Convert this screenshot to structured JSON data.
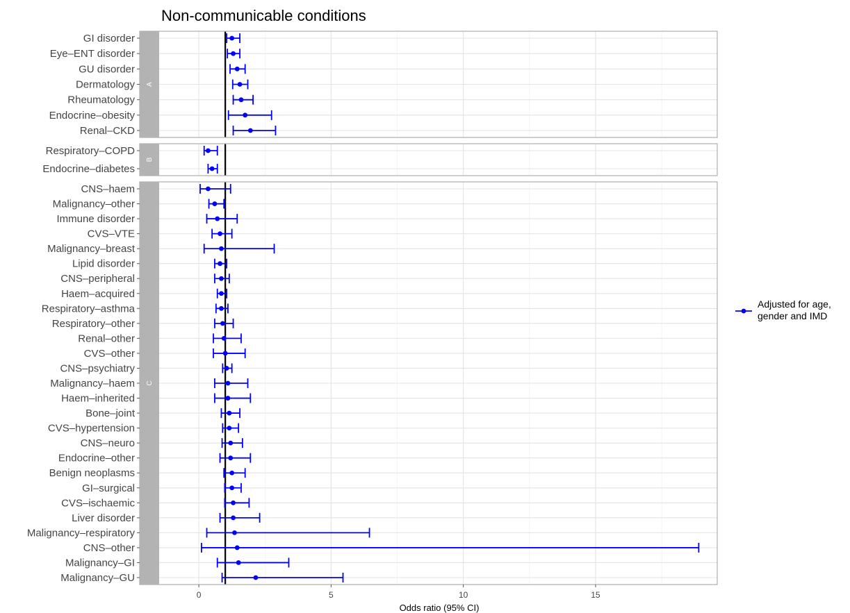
{
  "chart_data": {
    "type": "forest",
    "title": "Non-communicable conditions",
    "xlabel": "Odds ratio (95% CI)",
    "xlim": [
      -1.5,
      19.6
    ],
    "xticks": [
      0,
      5,
      10,
      15
    ],
    "reference_line": 1,
    "grid": true,
    "color": "#0000ff",
    "legend": {
      "position": "right",
      "lines": [
        "Adjusted for age,",
        "gender and IMD"
      ]
    },
    "panels": [
      {
        "label": "A",
        "rows": [
          {
            "name": "GI disorder",
            "or": 1.25,
            "lo": 1.05,
            "hi": 1.55
          },
          {
            "name": "Eye–ENT disorder",
            "or": 1.3,
            "lo": 1.08,
            "hi": 1.55
          },
          {
            "name": "GU disorder",
            "or": 1.45,
            "lo": 1.18,
            "hi": 1.75
          },
          {
            "name": "Dermatology",
            "or": 1.55,
            "lo": 1.28,
            "hi": 1.85
          },
          {
            "name": "Rheumatology",
            "or": 1.6,
            "lo": 1.3,
            "hi": 2.05
          },
          {
            "name": "Endocrine–obesity",
            "or": 1.75,
            "lo": 1.12,
            "hi": 2.75
          },
          {
            "name": "Renal–CKD",
            "or": 1.95,
            "lo": 1.3,
            "hi": 2.9
          }
        ]
      },
      {
        "label": "B",
        "rows": [
          {
            "name": "Respiratory–COPD",
            "or": 0.35,
            "lo": 0.2,
            "hi": 0.7
          },
          {
            "name": "Endocrine–diabetes",
            "or": 0.5,
            "lo": 0.35,
            "hi": 0.7
          }
        ]
      },
      {
        "label": "C",
        "rows": [
          {
            "name": "CNS–haem",
            "or": 0.35,
            "lo": 0.05,
            "hi": 1.2
          },
          {
            "name": "Malignancy–other",
            "or": 0.6,
            "lo": 0.38,
            "hi": 0.95
          },
          {
            "name": "Immune disorder",
            "or": 0.7,
            "lo": 0.3,
            "hi": 1.45
          },
          {
            "name": "CVS–VTE",
            "or": 0.8,
            "lo": 0.5,
            "hi": 1.25
          },
          {
            "name": "Malignancy–breast",
            "or": 0.85,
            "lo": 0.2,
            "hi": 2.85
          },
          {
            "name": "Lipid disorder",
            "or": 0.8,
            "lo": 0.6,
            "hi": 1.05
          },
          {
            "name": "CNS–peripheral",
            "or": 0.85,
            "lo": 0.6,
            "hi": 1.15
          },
          {
            "name": "Haem–acquired",
            "or": 0.85,
            "lo": 0.7,
            "hi": 1.05
          },
          {
            "name": "Respiratory–asthma",
            "or": 0.85,
            "lo": 0.65,
            "hi": 1.1
          },
          {
            "name": "Respiratory–other",
            "or": 0.9,
            "lo": 0.6,
            "hi": 1.3
          },
          {
            "name": "Renal–other",
            "or": 0.95,
            "lo": 0.55,
            "hi": 1.6
          },
          {
            "name": "CVS–other",
            "or": 1.0,
            "lo": 0.55,
            "hi": 1.75
          },
          {
            "name": "CNS–psychiatry",
            "or": 1.05,
            "lo": 0.9,
            "hi": 1.25
          },
          {
            "name": "Malignancy–haem",
            "or": 1.1,
            "lo": 0.6,
            "hi": 1.85
          },
          {
            "name": "Haem–inherited",
            "or": 1.1,
            "lo": 0.6,
            "hi": 1.95
          },
          {
            "name": "Bone–joint",
            "or": 1.15,
            "lo": 0.85,
            "hi": 1.55
          },
          {
            "name": "CVS–hypertension",
            "or": 1.15,
            "lo": 0.9,
            "hi": 1.5
          },
          {
            "name": "CNS–neuro",
            "or": 1.2,
            "lo": 0.88,
            "hi": 1.65
          },
          {
            "name": "Endocrine–other",
            "or": 1.2,
            "lo": 0.8,
            "hi": 1.95
          },
          {
            "name": "Benign neoplasms",
            "or": 1.25,
            "lo": 0.95,
            "hi": 1.75
          },
          {
            "name": "GI–surgical",
            "or": 1.25,
            "lo": 0.98,
            "hi": 1.6
          },
          {
            "name": "CVS–ischaemic",
            "or": 1.3,
            "lo": 0.98,
            "hi": 1.9
          },
          {
            "name": "Liver disorder",
            "or": 1.3,
            "lo": 0.8,
            "hi": 2.3
          },
          {
            "name": "Malignancy–respiratory",
            "or": 1.35,
            "lo": 0.3,
            "hi": 6.45
          },
          {
            "name": "CNS–other",
            "or": 1.45,
            "lo": 0.1,
            "hi": 18.9
          },
          {
            "name": "Malignancy–GI",
            "or": 1.5,
            "lo": 0.7,
            "hi": 3.4
          },
          {
            "name": "Malignancy–GU",
            "or": 2.15,
            "lo": 0.88,
            "hi": 5.45
          }
        ]
      }
    ]
  }
}
